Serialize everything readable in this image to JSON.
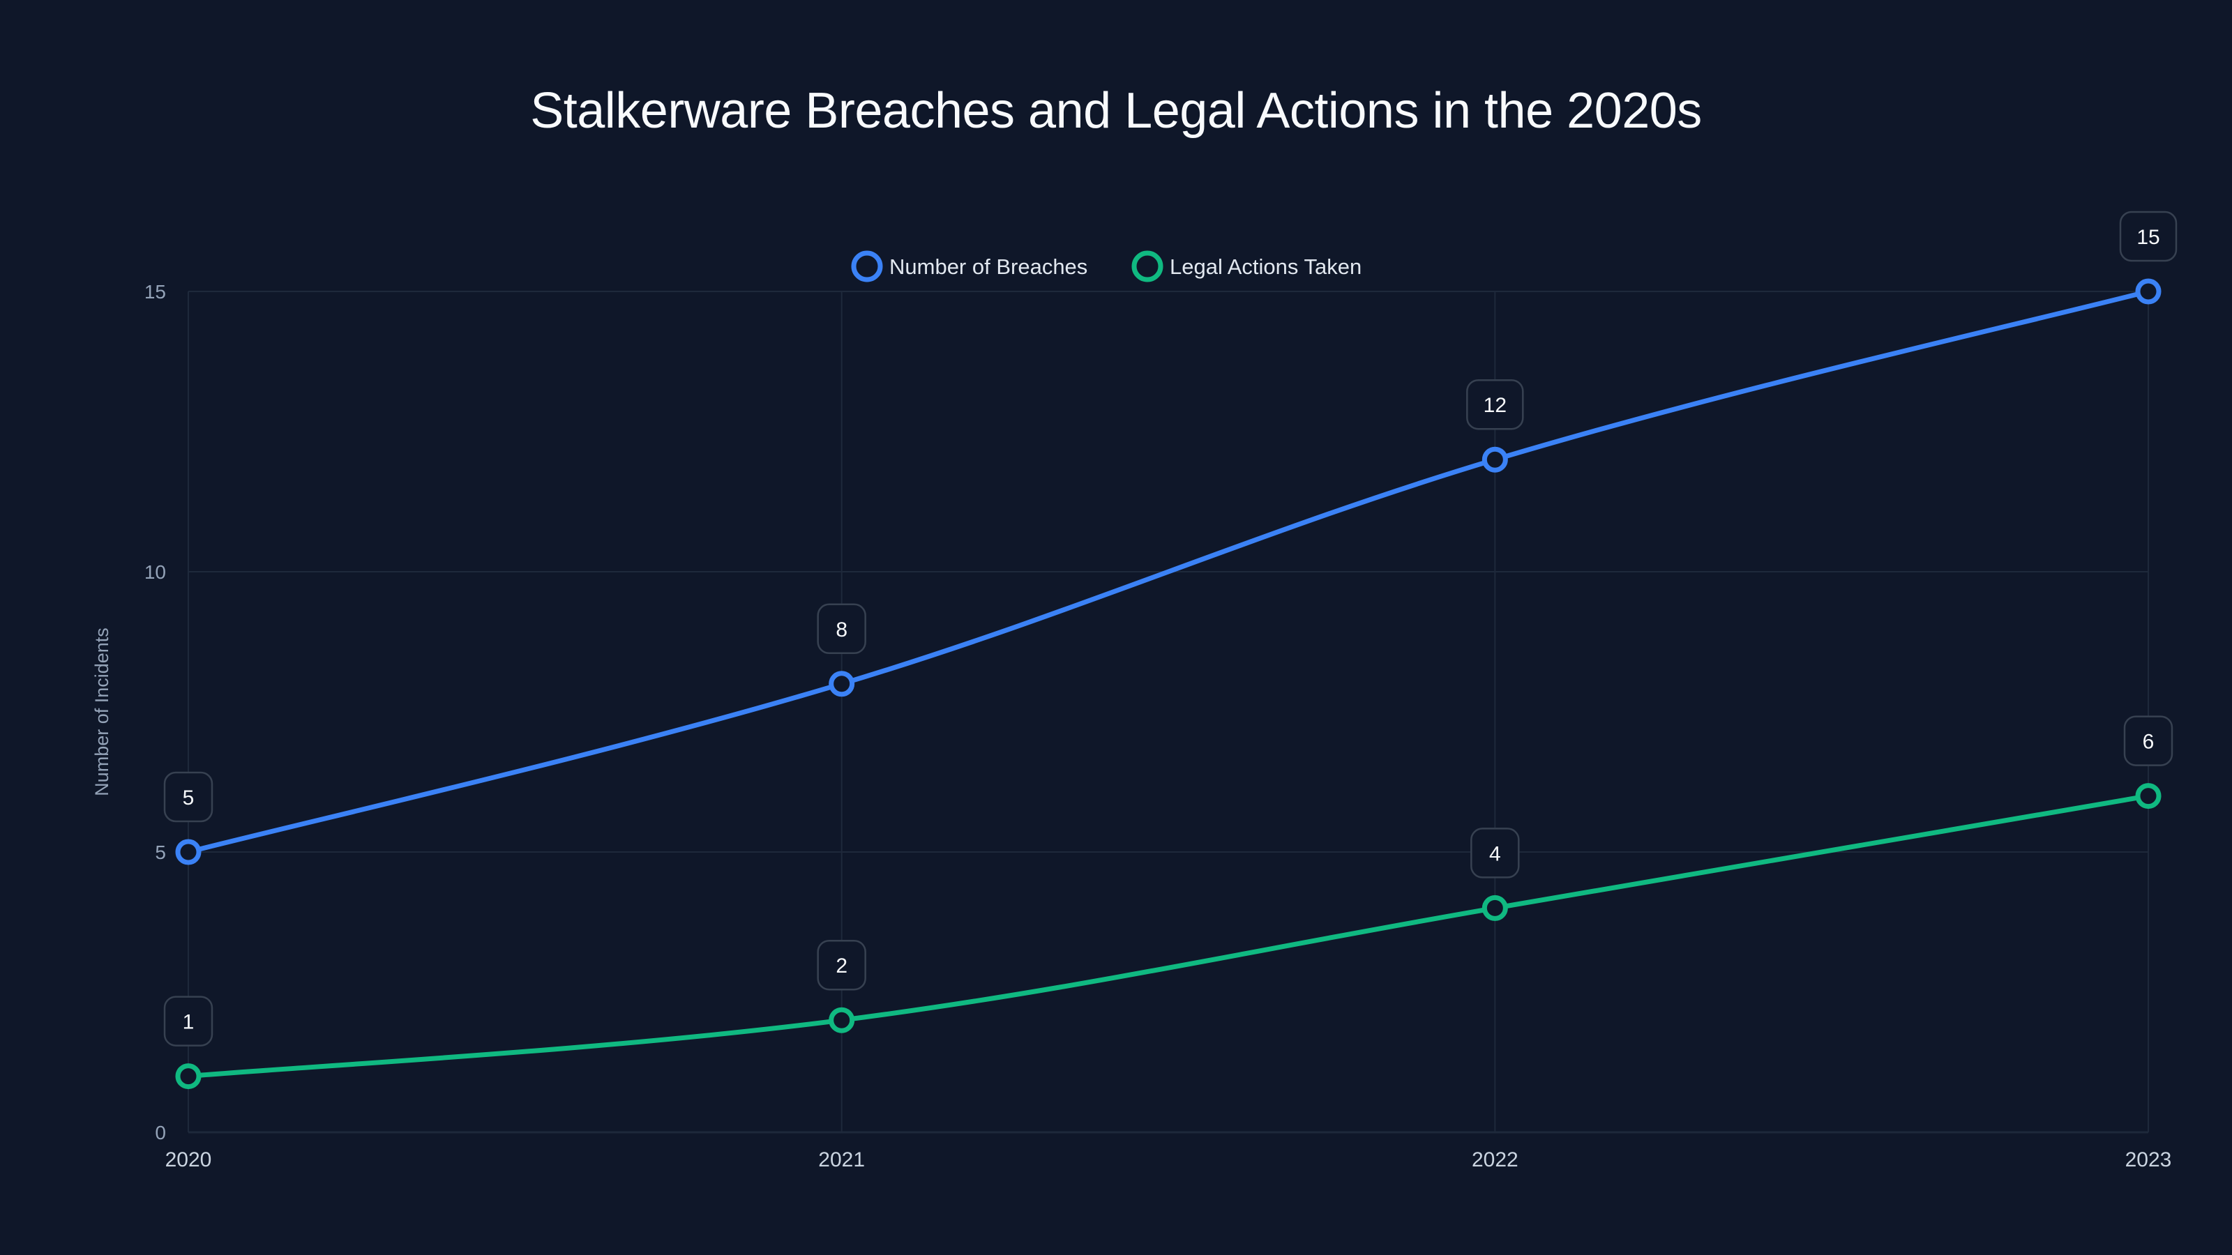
{
  "title": "Stalkerware Breaches and Legal Actions in the 2020s",
  "legend": {
    "items": [
      {
        "label": "Number of Breaches",
        "color": "#3b82f6"
      },
      {
        "label": "Legal Actions Taken",
        "color": "#10b981"
      }
    ]
  },
  "axes": {
    "y_title": "Number of Incidents",
    "y_ticks": [
      "0",
      "5",
      "10",
      "15"
    ],
    "x_ticks": [
      "2020",
      "2021",
      "2022",
      "2023"
    ]
  },
  "colors": {
    "background": "#0f1729",
    "grid": "#1e293b",
    "breaches": "#3b82f6",
    "legal": "#10b981",
    "label_border": "#374151"
  },
  "chart_data": {
    "type": "line",
    "title": "Stalkerware Breaches and Legal Actions in the 2020s",
    "xlabel": "",
    "ylabel": "Number of Incidents",
    "categories": [
      "2020",
      "2021",
      "2022",
      "2023"
    ],
    "series": [
      {
        "name": "Number of Breaches",
        "values": [
          5,
          8,
          12,
          15
        ],
        "color": "#3b82f6"
      },
      {
        "name": "Legal Actions Taken",
        "values": [
          1,
          2,
          4,
          6
        ],
        "color": "#10b981"
      }
    ],
    "ylim": [
      0,
      15
    ],
    "y_ticks": [
      0,
      5,
      10,
      15
    ],
    "grid": true,
    "legend_position": "top-center",
    "data_labels": true,
    "smooth": true
  }
}
